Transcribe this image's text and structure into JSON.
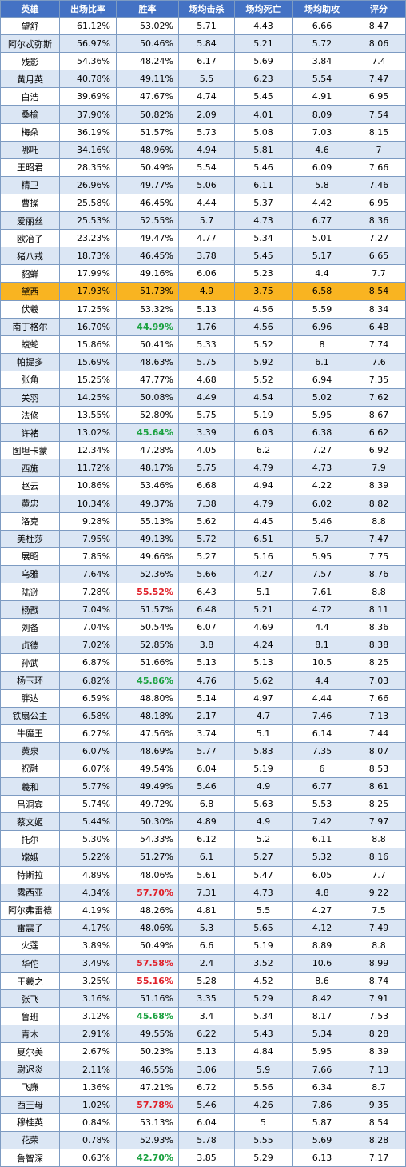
{
  "columns": [
    "英雄",
    "出场比率",
    "胜率",
    "场均击杀",
    "场均死亡",
    "场均助攻",
    "评分"
  ],
  "colors": {
    "header": "#4472c4",
    "stripe": "#dbe6f4",
    "highlight_row": "#f9b421",
    "high_winrate": "#e0212a",
    "low_winrate": "#1aa13f"
  },
  "rows": [
    {
      "hero": "望舒",
      "pick": "61.12%",
      "win": "53.02%",
      "kills": "5.71",
      "deaths": "4.43",
      "assists": "6.66",
      "score": "8.47",
      "style": ""
    },
    {
      "hero": "阿尔忒弥斯",
      "pick": "56.97%",
      "win": "50.46%",
      "kills": "5.84",
      "deaths": "5.21",
      "assists": "5.72",
      "score": "8.06",
      "style": ""
    },
    {
      "hero": "残影",
      "pick": "54.36%",
      "win": "48.24%",
      "kills": "6.17",
      "deaths": "5.69",
      "assists": "3.84",
      "score": "7.4",
      "style": ""
    },
    {
      "hero": "黄月英",
      "pick": "40.78%",
      "win": "49.11%",
      "kills": "5.5",
      "deaths": "6.23",
      "assists": "5.54",
      "score": "7.47",
      "style": ""
    },
    {
      "hero": "白浩",
      "pick": "39.69%",
      "win": "47.67%",
      "kills": "4.74",
      "deaths": "5.45",
      "assists": "4.91",
      "score": "6.95",
      "style": ""
    },
    {
      "hero": "桑榆",
      "pick": "37.90%",
      "win": "50.82%",
      "kills": "2.09",
      "deaths": "4.01",
      "assists": "8.09",
      "score": "7.54",
      "style": ""
    },
    {
      "hero": "梅朵",
      "pick": "36.19%",
      "win": "51.57%",
      "kills": "5.73",
      "deaths": "5.08",
      "assists": "7.03",
      "score": "8.15",
      "style": ""
    },
    {
      "hero": "哪吒",
      "pick": "34.16%",
      "win": "48.96%",
      "kills": "4.94",
      "deaths": "5.81",
      "assists": "4.6",
      "score": "7",
      "style": ""
    },
    {
      "hero": "王昭君",
      "pick": "28.35%",
      "win": "50.49%",
      "kills": "5.54",
      "deaths": "5.46",
      "assists": "6.09",
      "score": "7.66",
      "style": ""
    },
    {
      "hero": "精卫",
      "pick": "26.96%",
      "win": "49.77%",
      "kills": "5.06",
      "deaths": "6.11",
      "assists": "5.8",
      "score": "7.46",
      "style": ""
    },
    {
      "hero": "曹操",
      "pick": "25.58%",
      "win": "46.45%",
      "kills": "4.44",
      "deaths": "5.37",
      "assists": "4.42",
      "score": "6.95",
      "style": ""
    },
    {
      "hero": "爱丽丝",
      "pick": "25.53%",
      "win": "52.55%",
      "kills": "5.7",
      "deaths": "4.73",
      "assists": "6.77",
      "score": "8.36",
      "style": ""
    },
    {
      "hero": "欧冶子",
      "pick": "23.23%",
      "win": "49.47%",
      "kills": "4.77",
      "deaths": "5.34",
      "assists": "5.01",
      "score": "7.27",
      "style": ""
    },
    {
      "hero": "猪八戒",
      "pick": "18.73%",
      "win": "46.45%",
      "kills": "3.78",
      "deaths": "5.45",
      "assists": "5.17",
      "score": "6.65",
      "style": ""
    },
    {
      "hero": "貂蝉",
      "pick": "17.99%",
      "win": "49.16%",
      "kills": "6.06",
      "deaths": "5.23",
      "assists": "4.4",
      "score": "7.7",
      "style": ""
    },
    {
      "hero": "黛西",
      "pick": "17.93%",
      "win": "51.73%",
      "kills": "4.9",
      "deaths": "3.75",
      "assists": "6.58",
      "score": "8.54",
      "style": "",
      "highlight": true
    },
    {
      "hero": "伏羲",
      "pick": "17.25%",
      "win": "53.32%",
      "kills": "5.13",
      "deaths": "4.56",
      "assists": "5.59",
      "score": "8.34",
      "style": ""
    },
    {
      "hero": "南丁格尔",
      "pick": "16.70%",
      "win": "44.99%",
      "kills": "1.76",
      "deaths": "4.56",
      "assists": "6.96",
      "score": "6.48",
      "style": "low"
    },
    {
      "hero": "蝮蛇",
      "pick": "15.86%",
      "win": "50.41%",
      "kills": "5.33",
      "deaths": "5.52",
      "assists": "8",
      "score": "7.74",
      "style": ""
    },
    {
      "hero": "帕提多",
      "pick": "15.69%",
      "win": "48.63%",
      "kills": "5.75",
      "deaths": "5.92",
      "assists": "6.1",
      "score": "7.6",
      "style": ""
    },
    {
      "hero": "张角",
      "pick": "15.25%",
      "win": "47.77%",
      "kills": "4.68",
      "deaths": "5.52",
      "assists": "6.94",
      "score": "7.35",
      "style": ""
    },
    {
      "hero": "关羽",
      "pick": "14.25%",
      "win": "50.08%",
      "kills": "4.49",
      "deaths": "4.54",
      "assists": "5.02",
      "score": "7.62",
      "style": ""
    },
    {
      "hero": "法修",
      "pick": "13.55%",
      "win": "52.80%",
      "kills": "5.75",
      "deaths": "5.19",
      "assists": "5.95",
      "score": "8.67",
      "style": ""
    },
    {
      "hero": "许褚",
      "pick": "13.02%",
      "win": "45.64%",
      "kills": "3.39",
      "deaths": "6.03",
      "assists": "6.38",
      "score": "6.62",
      "style": "low"
    },
    {
      "hero": "图坦卡蒙",
      "pick": "12.34%",
      "win": "47.28%",
      "kills": "4.05",
      "deaths": "6.2",
      "assists": "7.27",
      "score": "6.92",
      "style": ""
    },
    {
      "hero": "西施",
      "pick": "11.72%",
      "win": "48.17%",
      "kills": "5.75",
      "deaths": "4.79",
      "assists": "4.73",
      "score": "7.9",
      "style": ""
    },
    {
      "hero": "赵云",
      "pick": "10.86%",
      "win": "53.46%",
      "kills": "6.68",
      "deaths": "4.94",
      "assists": "4.22",
      "score": "8.39",
      "style": ""
    },
    {
      "hero": "黄忠",
      "pick": "10.34%",
      "win": "49.37%",
      "kills": "7.38",
      "deaths": "4.79",
      "assists": "6.02",
      "score": "8.82",
      "style": ""
    },
    {
      "hero": "洛克",
      "pick": "9.28%",
      "win": "55.13%",
      "kills": "5.62",
      "deaths": "4.45",
      "assists": "5.46",
      "score": "8.8",
      "style": ""
    },
    {
      "hero": "美杜莎",
      "pick": "7.95%",
      "win": "49.13%",
      "kills": "5.72",
      "deaths": "6.51",
      "assists": "5.7",
      "score": "7.47",
      "style": ""
    },
    {
      "hero": "展昭",
      "pick": "7.85%",
      "win": "49.66%",
      "kills": "5.27",
      "deaths": "5.16",
      "assists": "5.95",
      "score": "7.75",
      "style": ""
    },
    {
      "hero": "乌雅",
      "pick": "7.64%",
      "win": "52.36%",
      "kills": "5.66",
      "deaths": "4.27",
      "assists": "7.57",
      "score": "8.76",
      "style": ""
    },
    {
      "hero": "陆逊",
      "pick": "7.28%",
      "win": "55.52%",
      "kills": "6.43",
      "deaths": "5.1",
      "assists": "7.61",
      "score": "8.8",
      "style": "high"
    },
    {
      "hero": "杨戬",
      "pick": "7.04%",
      "win": "51.57%",
      "kills": "6.48",
      "deaths": "5.21",
      "assists": "4.72",
      "score": "8.11",
      "style": ""
    },
    {
      "hero": "刘备",
      "pick": "7.04%",
      "win": "50.54%",
      "kills": "6.07",
      "deaths": "4.69",
      "assists": "4.4",
      "score": "8.36",
      "style": ""
    },
    {
      "hero": "贞德",
      "pick": "7.02%",
      "win": "52.85%",
      "kills": "3.8",
      "deaths": "4.24",
      "assists": "8.1",
      "score": "8.38",
      "style": ""
    },
    {
      "hero": "孙武",
      "pick": "6.87%",
      "win": "51.66%",
      "kills": "5.13",
      "deaths": "5.13",
      "assists": "10.5",
      "score": "8.25",
      "style": ""
    },
    {
      "hero": "杨玉环",
      "pick": "6.82%",
      "win": "45.86%",
      "kills": "4.76",
      "deaths": "5.62",
      "assists": "4.4",
      "score": "7.03",
      "style": "low"
    },
    {
      "hero": "胖达",
      "pick": "6.59%",
      "win": "48.80%",
      "kills": "5.14",
      "deaths": "4.97",
      "assists": "4.44",
      "score": "7.66",
      "style": ""
    },
    {
      "hero": "铁扇公主",
      "pick": "6.58%",
      "win": "48.18%",
      "kills": "2.17",
      "deaths": "4.7",
      "assists": "7.46",
      "score": "7.13",
      "style": ""
    },
    {
      "hero": "牛魔王",
      "pick": "6.27%",
      "win": "47.56%",
      "kills": "3.74",
      "deaths": "5.1",
      "assists": "6.14",
      "score": "7.44",
      "style": ""
    },
    {
      "hero": "黄泉",
      "pick": "6.07%",
      "win": "48.69%",
      "kills": "5.77",
      "deaths": "5.83",
      "assists": "7.35",
      "score": "8.07",
      "style": ""
    },
    {
      "hero": "祝融",
      "pick": "6.07%",
      "win": "49.54%",
      "kills": "6.04",
      "deaths": "5.19",
      "assists": "6",
      "score": "8.53",
      "style": ""
    },
    {
      "hero": "羲和",
      "pick": "5.77%",
      "win": "49.49%",
      "kills": "5.46",
      "deaths": "4.9",
      "assists": "6.77",
      "score": "8.61",
      "style": ""
    },
    {
      "hero": "吕洞宾",
      "pick": "5.74%",
      "win": "49.72%",
      "kills": "6.8",
      "deaths": "5.63",
      "assists": "5.53",
      "score": "8.25",
      "style": ""
    },
    {
      "hero": "蔡文姬",
      "pick": "5.44%",
      "win": "50.30%",
      "kills": "4.89",
      "deaths": "4.9",
      "assists": "7.42",
      "score": "7.97",
      "style": ""
    },
    {
      "hero": "托尔",
      "pick": "5.30%",
      "win": "54.33%",
      "kills": "6.12",
      "deaths": "5.2",
      "assists": "6.11",
      "score": "8.8",
      "style": ""
    },
    {
      "hero": "嫦娥",
      "pick": "5.22%",
      "win": "51.27%",
      "kills": "6.1",
      "deaths": "5.27",
      "assists": "5.32",
      "score": "8.16",
      "style": ""
    },
    {
      "hero": "特斯拉",
      "pick": "4.89%",
      "win": "48.06%",
      "kills": "5.61",
      "deaths": "5.47",
      "assists": "6.05",
      "score": "7.7",
      "style": ""
    },
    {
      "hero": "露西亚",
      "pick": "4.34%",
      "win": "57.70%",
      "kills": "7.31",
      "deaths": "4.73",
      "assists": "4.8",
      "score": "9.22",
      "style": "high"
    },
    {
      "hero": "阿尔弗雷德",
      "pick": "4.19%",
      "win": "48.26%",
      "kills": "4.81",
      "deaths": "5.5",
      "assists": "4.27",
      "score": "7.5",
      "style": ""
    },
    {
      "hero": "雷震子",
      "pick": "4.17%",
      "win": "48.06%",
      "kills": "5.3",
      "deaths": "5.65",
      "assists": "4.12",
      "score": "7.49",
      "style": ""
    },
    {
      "hero": "火莲",
      "pick": "3.89%",
      "win": "50.49%",
      "kills": "6.6",
      "deaths": "5.19",
      "assists": "8.89",
      "score": "8.8",
      "style": ""
    },
    {
      "hero": "华佗",
      "pick": "3.49%",
      "win": "57.58%",
      "kills": "2.4",
      "deaths": "3.52",
      "assists": "10.6",
      "score": "8.99",
      "style": "high"
    },
    {
      "hero": "王羲之",
      "pick": "3.25%",
      "win": "55.16%",
      "kills": "5.28",
      "deaths": "4.52",
      "assists": "8.6",
      "score": "8.74",
      "style": "high"
    },
    {
      "hero": "张飞",
      "pick": "3.16%",
      "win": "51.16%",
      "kills": "3.35",
      "deaths": "5.29",
      "assists": "8.42",
      "score": "7.91",
      "style": ""
    },
    {
      "hero": "鲁班",
      "pick": "3.12%",
      "win": "45.68%",
      "kills": "3.4",
      "deaths": "5.34",
      "assists": "8.17",
      "score": "7.53",
      "style": "low"
    },
    {
      "hero": "青木",
      "pick": "2.91%",
      "win": "49.55%",
      "kills": "6.22",
      "deaths": "5.43",
      "assists": "5.34",
      "score": "8.28",
      "style": ""
    },
    {
      "hero": "夏尔美",
      "pick": "2.67%",
      "win": "50.23%",
      "kills": "5.13",
      "deaths": "4.84",
      "assists": "5.95",
      "score": "8.39",
      "style": ""
    },
    {
      "hero": "尉迟炎",
      "pick": "2.11%",
      "win": "46.55%",
      "kills": "3.06",
      "deaths": "5.9",
      "assists": "7.66",
      "score": "7.13",
      "style": ""
    },
    {
      "hero": "飞廉",
      "pick": "1.36%",
      "win": "47.21%",
      "kills": "6.72",
      "deaths": "5.56",
      "assists": "6.34",
      "score": "8.7",
      "style": ""
    },
    {
      "hero": "西王母",
      "pick": "1.02%",
      "win": "57.78%",
      "kills": "5.46",
      "deaths": "4.26",
      "assists": "7.86",
      "score": "9.35",
      "style": "high"
    },
    {
      "hero": "穆桂英",
      "pick": "0.84%",
      "win": "53.13%",
      "kills": "6.04",
      "deaths": "5",
      "assists": "5.87",
      "score": "8.54",
      "style": ""
    },
    {
      "hero": "花荣",
      "pick": "0.78%",
      "win": "52.93%",
      "kills": "5.78",
      "deaths": "5.55",
      "assists": "5.69",
      "score": "8.28",
      "style": ""
    },
    {
      "hero": "鲁智深",
      "pick": "0.63%",
      "win": "42.70%",
      "kills": "3.85",
      "deaths": "5.29",
      "assists": "6.13",
      "score": "7.17",
      "style": "low"
    }
  ]
}
